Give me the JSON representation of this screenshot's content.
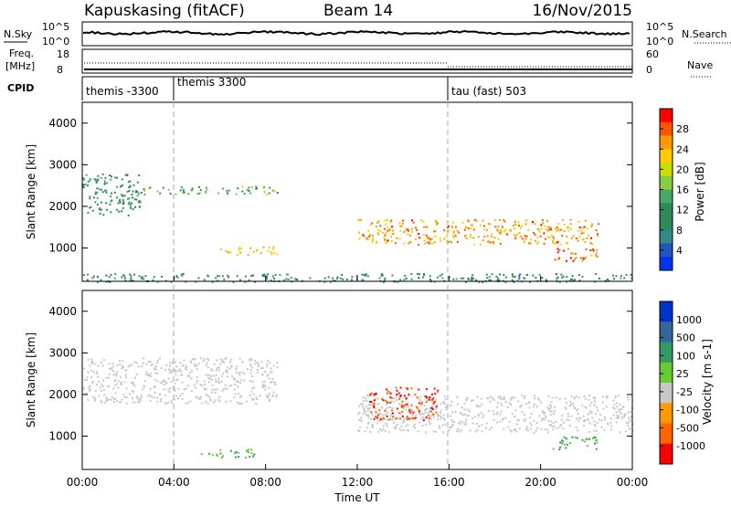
{
  "header": {
    "station": "Kapuskasing (fitACF)",
    "beam": "Beam 14",
    "date": "16/Nov/2015"
  },
  "sky_panel": {
    "left_label": "N.Sky",
    "right_label": "N.Search",
    "scale_top": "10^5",
    "scale_bottom": "10^0"
  },
  "freq_panel": {
    "left_label_1": "Freq.",
    "left_label_2": "[MHz]",
    "left_ticks": [
      "18",
      "8"
    ],
    "right_label": "Nave",
    "right_ticks": [
      "60",
      "0"
    ]
  },
  "cpid_panel": {
    "label": "CPID",
    "segments": [
      {
        "label": "themis -3300",
        "start_hour": 0
      },
      {
        "label": "themis 3300",
        "start_hour": 4
      },
      {
        "label": "tau (fast) 503",
        "start_hour": 16
      }
    ]
  },
  "power_panel": {
    "ylabel": "Slant Range [km]",
    "colorbar_label": "Power [dB]",
    "colorbar_ticks": [
      "28",
      "24",
      "20",
      "16",
      "12",
      "8",
      "4"
    ],
    "colorbar_colors": [
      "#ff0000",
      "#ff5500",
      "#ff9900",
      "#ffcc00",
      "#ccdd00",
      "#88cc44",
      "#44aa66",
      "#2e8b57",
      "#2e8b57",
      "#338888",
      "#2255bb",
      "#0033ee"
    ]
  },
  "velocity_panel": {
    "ylabel": "Slant Range [km]",
    "colorbar_label": "Velocity [m s-1]",
    "colorbar_ticks": [
      "1000",
      "500",
      "100",
      "25",
      "-25",
      "-100",
      "-500",
      "-1000"
    ],
    "colorbar_colors": [
      "#0033cc",
      "#336699",
      "#339966",
      "#66cc33",
      "#c8c8c8",
      "#ff9900",
      "#ff6600",
      "#ff0000"
    ]
  },
  "x_axis": {
    "label": "Time UT",
    "ticks": [
      "00:00",
      "04:00",
      "08:00",
      "12:00",
      "16:00",
      "20:00",
      "00:00"
    ]
  },
  "chart_data": {
    "type": "heatmap",
    "title": "Kapuskasing (fitACF)",
    "subtitle": "Beam 14",
    "date": "16/Nov/2015",
    "xlabel": "Time UT",
    "ylabel": "Slant Range [km]",
    "x_range_hours": [
      0,
      24
    ],
    "y_range_km": [
      200,
      4500
    ],
    "y_ticks": [
      1000,
      2000,
      3000,
      4000
    ],
    "cpid_boundaries_hours": [
      4,
      16
    ],
    "power_echo_bands": [
      {
        "t_start": 0.0,
        "t_end": 2.5,
        "range_start": 1800,
        "range_end": 2800,
        "power_db": 10
      },
      {
        "t_start": 2.5,
        "t_end": 8.5,
        "range_start": 2300,
        "range_end": 2500,
        "power_db": 14
      },
      {
        "t_start": 6.0,
        "t_end": 8.5,
        "range_start": 850,
        "range_end": 1050,
        "power_db": 20
      },
      {
        "t_start": 12.0,
        "t_end": 22.5,
        "range_start": 1100,
        "range_end": 1700,
        "power_db": 24
      },
      {
        "t_start": 20.5,
        "t_end": 22.5,
        "range_start": 700,
        "range_end": 1000,
        "power_db": 28
      },
      {
        "t_start": 0.0,
        "t_end": 24.0,
        "range_start": 200,
        "range_end": 400,
        "power_db": 8
      }
    ],
    "velocity_echo_bands": [
      {
        "t_start": 0.0,
        "t_end": 8.5,
        "range_start": 1800,
        "range_end": 2900,
        "velocity_ms": 0
      },
      {
        "t_start": 12.0,
        "t_end": 24.0,
        "range_start": 1100,
        "range_end": 2000,
        "velocity_ms": 0
      },
      {
        "t_start": 12.5,
        "t_end": 15.5,
        "range_start": 1400,
        "range_end": 2200,
        "velocity_ms": -500
      },
      {
        "t_start": 20.5,
        "t_end": 22.5,
        "range_start": 700,
        "range_end": 1000,
        "velocity_ms": 100
      },
      {
        "t_start": 5.0,
        "t_end": 7.5,
        "range_start": 500,
        "range_end": 700,
        "velocity_ms": 100
      }
    ]
  }
}
